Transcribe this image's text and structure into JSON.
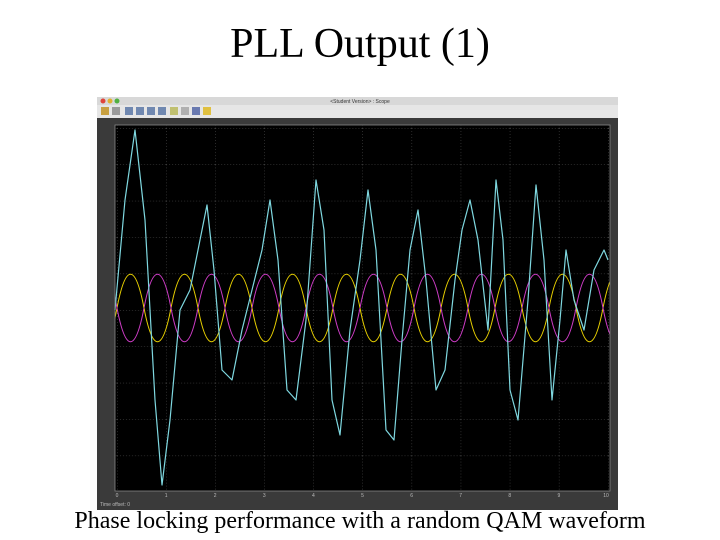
{
  "slide": {
    "title": "PLL Output (1)",
    "caption": "Phase locking performance with a random QAM waveform"
  },
  "scope": {
    "window_title": "<Student Version> : Scope",
    "x_ticks": [
      "0",
      "1",
      "2",
      "3",
      "4",
      "5",
      "6",
      "7",
      "8",
      "9",
      "10"
    ],
    "time_offset": "Time offset:  0"
  }
}
